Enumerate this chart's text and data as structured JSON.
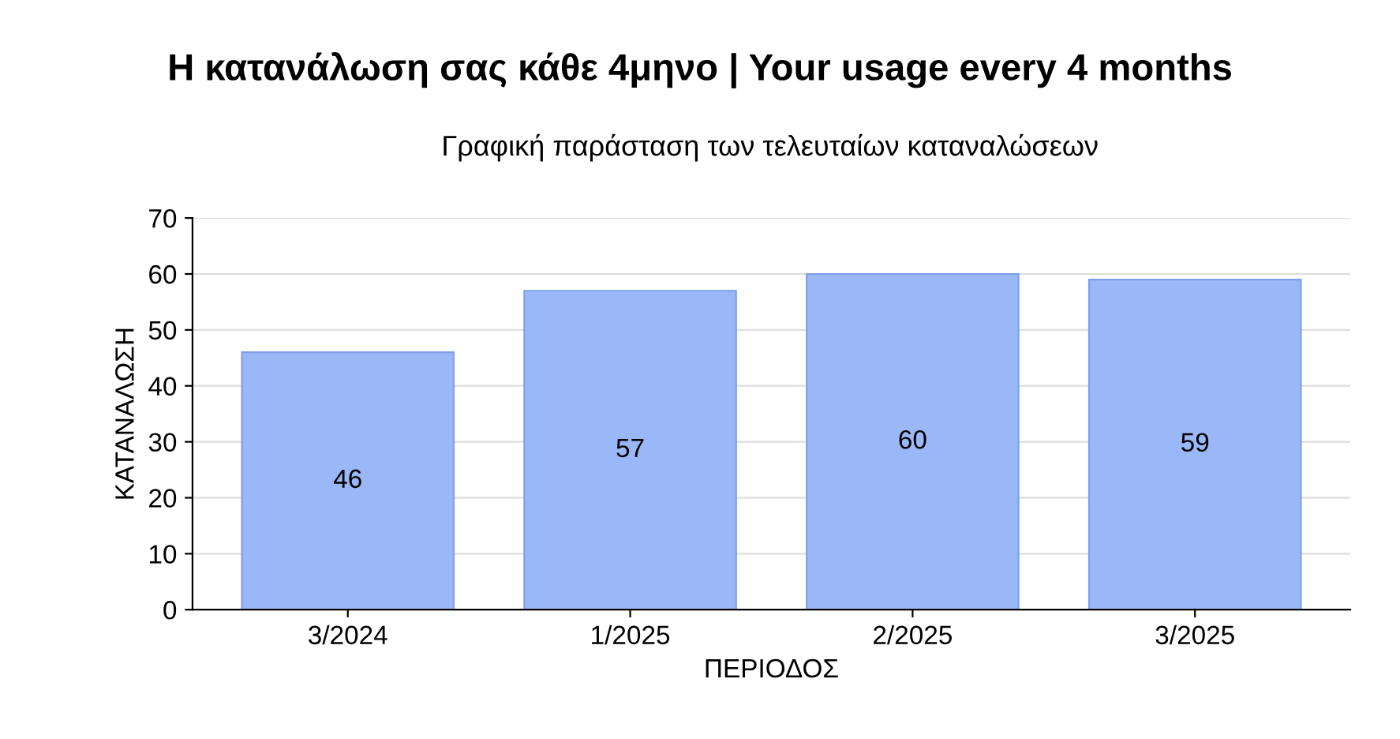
{
  "chart_data": {
    "type": "bar",
    "title": "Η κατανάλωση σας κάθε 4μηνο | Your usage every 4 months",
    "subtitle": "Γραφική παράσταση των τελευταίων καταναλώσεων",
    "xlabel": "ΠΕΡΙΟΔΟΣ",
    "ylabel": "ΚΑΤΑΝΑΛΩΣΗ",
    "categories": [
      "3/2024",
      "1/2025",
      "2/2025",
      "3/2025"
    ],
    "values": [
      46,
      57,
      60,
      59
    ],
    "color": "#9ab8f7",
    "ylim": [
      0,
      70
    ],
    "yticks": [
      0,
      10,
      20,
      30,
      40,
      50,
      60,
      70
    ],
    "grid": "y",
    "data_labels": true
  }
}
